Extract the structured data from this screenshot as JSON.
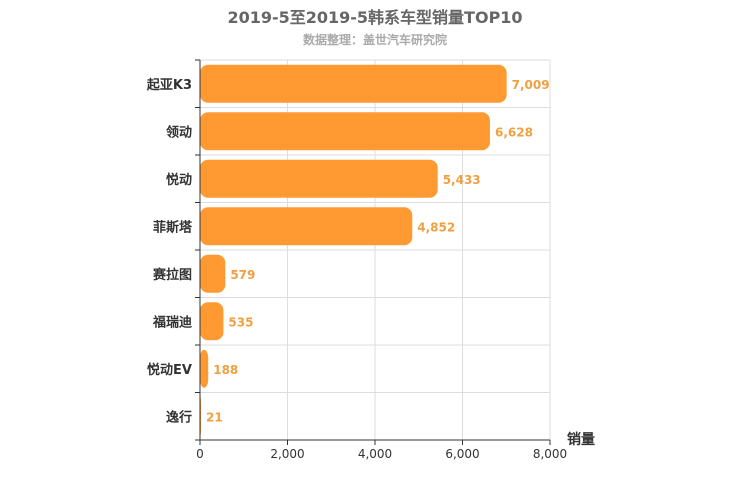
{
  "chart_data": {
    "type": "bar",
    "orientation": "horizontal",
    "title": "2019-5至2019-5韩系车型销量TOP10",
    "subtitle": "数据整理：盖世汽车研究院",
    "xlabel": "销量",
    "ylabel": "",
    "categories": [
      "起亚K3",
      "领动",
      "悦动",
      "菲斯塔",
      "赛拉图",
      "福瑞迪",
      "悦动EV",
      "逸行"
    ],
    "values": [
      7009,
      6628,
      5433,
      4852,
      579,
      535,
      188,
      21
    ],
    "value_labels": [
      "7,009",
      "6,628",
      "5,433",
      "4,852",
      "579",
      "535",
      "188",
      "21"
    ],
    "xlim": [
      0,
      8000
    ],
    "xticks": [
      0,
      2000,
      4000,
      6000,
      8000
    ],
    "xtick_labels": [
      "0",
      "2,000",
      "4,000",
      "6,000",
      "8,000"
    ],
    "grid": true,
    "legend": "none",
    "colors": {
      "bar": "#ff9a33",
      "value_label": "#f0a040",
      "grid": "#dddddd",
      "axis": "#333333"
    }
  }
}
